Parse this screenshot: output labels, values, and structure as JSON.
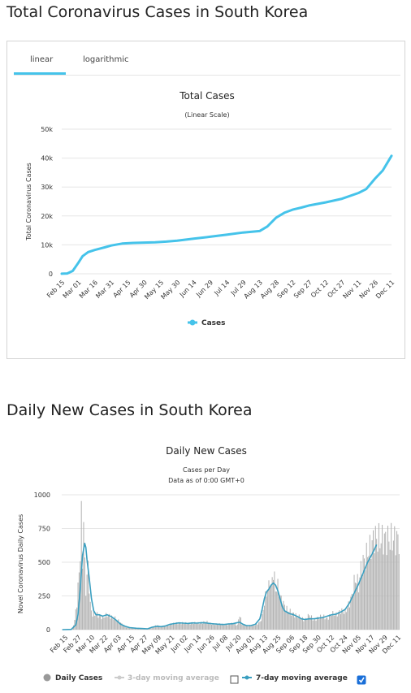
{
  "total_section": {
    "heading": "Total Coronavirus Cases in South Korea",
    "tabs": [
      {
        "label": "linear",
        "active": true
      },
      {
        "label": "logarithmic",
        "active": false
      }
    ],
    "colors": {
      "line": "#45c3ea",
      "grid": "#e6e6e6",
      "accent": "#45c3ea"
    }
  },
  "daily_section": {
    "heading": "Daily New Cases in South Korea",
    "legend": {
      "daily": "Daily Cases",
      "ma3": "3-day moving average",
      "ma3_checked": false,
      "ma7": "7-day moving average",
      "ma7_checked": true
    },
    "colors": {
      "bars": "#b3b3b3",
      "ma7": "#3a9fc0",
      "ma3": "#cccccc",
      "checkbox": "#1a6fd8"
    }
  },
  "chart_data": [
    {
      "type": "line",
      "title": "Total Cases",
      "subtitle": "(Linear Scale)",
      "ylabel": "Total Coronavirus Cases",
      "xlabel": "",
      "ylim": [
        0,
        50000
      ],
      "y_ticks": [
        "0",
        "10k",
        "20k",
        "30k",
        "40k",
        "50k"
      ],
      "y_tick_values": [
        0,
        10000,
        20000,
        30000,
        40000,
        50000
      ],
      "grid": true,
      "x_ticks": [
        "Feb 15",
        "Mar 01",
        "Mar 16",
        "Mar 31",
        "Apr 15",
        "Apr 30",
        "May 15",
        "May 30",
        "Jun 14",
        "Jun 29",
        "Jul 14",
        "Jul 29",
        "Aug 13",
        "Aug 28",
        "Sep 12",
        "Sep 27",
        "Oct 12",
        "Oct 27",
        "Nov 11",
        "Nov 26",
        "Dec 11"
      ],
      "series": [
        {
          "name": "Cases",
          "points": [
            [
              "2020-02-15",
              28
            ],
            [
              "2020-02-20",
              104
            ],
            [
              "2020-02-25",
              977
            ],
            [
              "2020-03-01",
              3736
            ],
            [
              "2020-03-05",
              6088
            ],
            [
              "2020-03-10",
              7513
            ],
            [
              "2020-03-16",
              8236
            ],
            [
              "2020-03-25",
              9137
            ],
            [
              "2020-03-31",
              9786
            ],
            [
              "2020-04-10",
              10450
            ],
            [
              "2020-04-20",
              10674
            ],
            [
              "2020-04-30",
              10774
            ],
            [
              "2020-05-10",
              10874
            ],
            [
              "2020-05-20",
              11122
            ],
            [
              "2020-05-30",
              11468
            ],
            [
              "2020-06-14",
              12121
            ],
            [
              "2020-06-29",
              12800
            ],
            [
              "2020-07-14",
              13512
            ],
            [
              "2020-07-29",
              14269
            ],
            [
              "2020-08-13",
              14770
            ],
            [
              "2020-08-20",
              16346
            ],
            [
              "2020-08-28",
              19400
            ],
            [
              "2020-09-05",
              21177
            ],
            [
              "2020-09-12",
              22176
            ],
            [
              "2020-09-20",
              22893
            ],
            [
              "2020-09-27",
              23611
            ],
            [
              "2020-10-12",
              24703
            ],
            [
              "2020-10-27",
              25955
            ],
            [
              "2020-11-11",
              27942
            ],
            [
              "2020-11-18",
              29311
            ],
            [
              "2020-11-26",
              32887
            ],
            [
              "2020-12-03",
              35703
            ],
            [
              "2020-12-11",
              40786
            ]
          ]
        }
      ],
      "legend_position": "bottom-center"
    },
    {
      "type": "bar",
      "title": "Daily New Cases",
      "subtitle_lines": [
        "Cases per Day",
        "Data as of 0:00 GMT+0"
      ],
      "ylabel": "Novel Coronavirus Daily Cases",
      "xlabel": "",
      "ylim": [
        0,
        1000
      ],
      "y_ticks": [
        "0",
        "250",
        "500",
        "750",
        "1000"
      ],
      "y_tick_values": [
        0,
        250,
        500,
        750,
        1000
      ],
      "grid": true,
      "x_ticks": [
        "Feb 15",
        "Feb 27",
        "Mar 10",
        "Mar 22",
        "Apr 03",
        "Apr 15",
        "Apr 27",
        "May 09",
        "May 21",
        "Jun 02",
        "Jun 14",
        "Jun 26",
        "Jul 08",
        "Jul 20",
        "Aug 01",
        "Aug 13",
        "Aug 25",
        "Sep 06",
        "Sep 18",
        "Sep 30",
        "Oct 12",
        "Oct 24",
        "Nov 05",
        "Nov 17",
        "Nov 29",
        "Dec 11"
      ],
      "daily_anchors": [
        [
          0,
          0
        ],
        [
          5,
          1
        ],
        [
          9,
          5
        ],
        [
          11,
          70
        ],
        [
          13,
          200
        ],
        [
          15,
          420
        ],
        [
          16,
          590
        ],
        [
          17,
          810
        ],
        [
          18,
          500
        ],
        [
          19,
          840
        ],
        [
          20,
          460
        ],
        [
          21,
          300
        ],
        [
          23,
          470
        ],
        [
          25,
          180
        ],
        [
          27,
          110
        ],
        [
          30,
          120
        ],
        [
          33,
          100
        ],
        [
          36,
          90
        ],
        [
          40,
          110
        ],
        [
          44,
          95
        ],
        [
          48,
          80
        ],
        [
          52,
          50
        ],
        [
          56,
          20
        ],
        [
          60,
          14
        ],
        [
          65,
          10
        ],
        [
          70,
          8
        ],
        [
          74,
          6
        ],
        [
          80,
          12
        ],
        [
          84,
          34
        ],
        [
          88,
          20
        ],
        [
          92,
          27
        ],
        [
          96,
          38
        ],
        [
          100,
          45
        ],
        [
          104,
          50
        ],
        [
          108,
          48
        ],
        [
          112,
          45
        ],
        [
          116,
          51
        ],
        [
          120,
          47
        ],
        [
          124,
          50
        ],
        [
          128,
          60
        ],
        [
          132,
          45
        ],
        [
          136,
          42
        ],
        [
          140,
          40
        ],
        [
          144,
          38
        ],
        [
          148,
          40
        ],
        [
          152,
          45
        ],
        [
          156,
          34
        ],
        [
          158,
          113
        ],
        [
          160,
          40
        ],
        [
          164,
          30
        ],
        [
          168,
          30
        ],
        [
          172,
          35
        ],
        [
          176,
          55
        ],
        [
          178,
          100
        ],
        [
          180,
          200
        ],
        [
          182,
          280
        ],
        [
          184,
          320
        ],
        [
          185,
          390
        ],
        [
          186,
          300
        ],
        [
          188,
          440
        ],
        [
          190,
          300
        ],
        [
          192,
          320
        ],
        [
          194,
          250
        ],
        [
          196,
          200
        ],
        [
          198,
          180
        ],
        [
          200,
          150
        ],
        [
          202,
          140
        ],
        [
          204,
          125
        ],
        [
          207,
          110
        ],
        [
          210,
          100
        ],
        [
          213,
          85
        ],
        [
          216,
          70
        ],
        [
          220,
          110
        ],
        [
          224,
          70
        ],
        [
          228,
          90
        ],
        [
          232,
          100
        ],
        [
          236,
          80
        ],
        [
          240,
          120
        ],
        [
          244,
          110
        ],
        [
          248,
          140
        ],
        [
          252,
          130
        ],
        [
          256,
          200
        ],
        [
          258,
          250
        ],
        [
          260,
          350
        ],
        [
          262,
          380
        ],
        [
          264,
          320
        ],
        [
          266,
          450
        ],
        [
          268,
          500
        ],
        [
          270,
          520
        ],
        [
          272,
          580
        ],
        [
          274,
          600
        ],
        [
          276,
          640
        ],
        [
          278,
          690
        ],
        [
          280,
          670
        ]
      ],
      "ma7_anchors": [
        [
          0,
          0
        ],
        [
          8,
          2
        ],
        [
          12,
          35
        ],
        [
          14,
          110
        ],
        [
          16,
          300
        ],
        [
          18,
          550
        ],
        [
          20,
          640
        ],
        [
          21,
          610
        ],
        [
          22,
          520
        ],
        [
          24,
          380
        ],
        [
          26,
          230
        ],
        [
          28,
          140
        ],
        [
          30,
          110
        ],
        [
          33,
          110
        ],
        [
          36,
          100
        ],
        [
          40,
          110
        ],
        [
          44,
          95
        ],
        [
          48,
          70
        ],
        [
          52,
          40
        ],
        [
          56,
          25
        ],
        [
          60,
          15
        ],
        [
          66,
          10
        ],
        [
          72,
          8
        ],
        [
          76,
          6
        ],
        [
          80,
          18
        ],
        [
          84,
          25
        ],
        [
          88,
          22
        ],
        [
          92,
          28
        ],
        [
          96,
          40
        ],
        [
          100,
          45
        ],
        [
          104,
          50
        ],
        [
          108,
          48
        ],
        [
          112,
          46
        ],
        [
          116,
          50
        ],
        [
          120,
          48
        ],
        [
          124,
          52
        ],
        [
          128,
          50
        ],
        [
          132,
          45
        ],
        [
          136,
          42
        ],
        [
          140,
          40
        ],
        [
          144,
          38
        ],
        [
          148,
          42
        ],
        [
          152,
          44
        ],
        [
          155,
          50
        ],
        [
          158,
          55
        ],
        [
          161,
          40
        ],
        [
          164,
          30
        ],
        [
          168,
          30
        ],
        [
          172,
          40
        ],
        [
          176,
          80
        ],
        [
          178,
          150
        ],
        [
          180,
          230
        ],
        [
          182,
          280
        ],
        [
          184,
          300
        ],
        [
          186,
          330
        ],
        [
          188,
          345
        ],
        [
          190,
          330
        ],
        [
          192,
          290
        ],
        [
          194,
          230
        ],
        [
          196,
          170
        ],
        [
          198,
          140
        ],
        [
          202,
          120
        ],
        [
          206,
          110
        ],
        [
          210,
          95
        ],
        [
          213,
          80
        ],
        [
          216,
          75
        ],
        [
          220,
          80
        ],
        [
          224,
          80
        ],
        [
          228,
          85
        ],
        [
          232,
          90
        ],
        [
          236,
          100
        ],
        [
          240,
          110
        ],
        [
          244,
          115
        ],
        [
          248,
          130
        ],
        [
          252,
          150
        ],
        [
          256,
          200
        ],
        [
          260,
          270
        ],
        [
          264,
          340
        ],
        [
          268,
          420
        ],
        [
          272,
          500
        ],
        [
          276,
          560
        ],
        [
          280,
          630
        ]
      ],
      "x_start": "2020-02-15",
      "x_end": "2020-12-11",
      "legend_position": "bottom-center"
    }
  ]
}
